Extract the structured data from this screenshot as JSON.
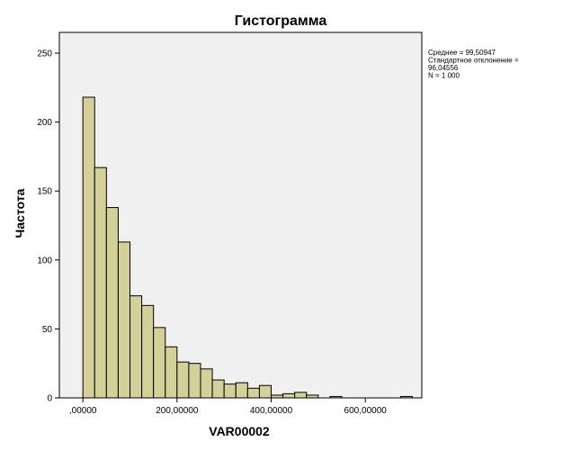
{
  "chart_data": {
    "type": "bar",
    "title": "Гистограмма",
    "xlabel": "VAR00002",
    "ylabel": "Частота",
    "xlim": [
      -50000,
      720000
    ],
    "ylim": [
      0,
      265
    ],
    "bin_width": 25000,
    "x_ticks": [
      {
        "value": 0,
        "label": ",00000"
      },
      {
        "value": 200000,
        "label": "200,00000"
      },
      {
        "value": 400000,
        "label": "400,00000"
      },
      {
        "value": 600000,
        "label": "600,00000"
      }
    ],
    "y_ticks": [
      {
        "value": 0,
        "label": "0"
      },
      {
        "value": 50,
        "label": "50"
      },
      {
        "value": 100,
        "label": "100"
      },
      {
        "value": 150,
        "label": "150"
      },
      {
        "value": 200,
        "label": "200"
      },
      {
        "value": 250,
        "label": "250"
      }
    ],
    "bins": [
      {
        "start": 0,
        "value": 218
      },
      {
        "start": 25000,
        "value": 167
      },
      {
        "start": 50000,
        "value": 138
      },
      {
        "start": 75000,
        "value": 113
      },
      {
        "start": 100000,
        "value": 74
      },
      {
        "start": 125000,
        "value": 67
      },
      {
        "start": 150000,
        "value": 51
      },
      {
        "start": 175000,
        "value": 37
      },
      {
        "start": 200000,
        "value": 26
      },
      {
        "start": 225000,
        "value": 25
      },
      {
        "start": 250000,
        "value": 21
      },
      {
        "start": 275000,
        "value": 13
      },
      {
        "start": 300000,
        "value": 10
      },
      {
        "start": 325000,
        "value": 11
      },
      {
        "start": 350000,
        "value": 7
      },
      {
        "start": 375000,
        "value": 9
      },
      {
        "start": 400000,
        "value": 2
      },
      {
        "start": 425000,
        "value": 3
      },
      {
        "start": 450000,
        "value": 4
      },
      {
        "start": 475000,
        "value": 2
      },
      {
        "start": 525000,
        "value": 1
      },
      {
        "start": 675000,
        "value": 1
      }
    ],
    "stats": [
      "Среднее = 99,50947",
      "Стандартное отклонение =",
      "96,04556",
      "N = 1 000"
    ],
    "grid": false,
    "colors": {
      "bar_fill": "#d4d09a",
      "bar_stroke": "#000000",
      "plot_background": "#f0f0f0"
    }
  }
}
